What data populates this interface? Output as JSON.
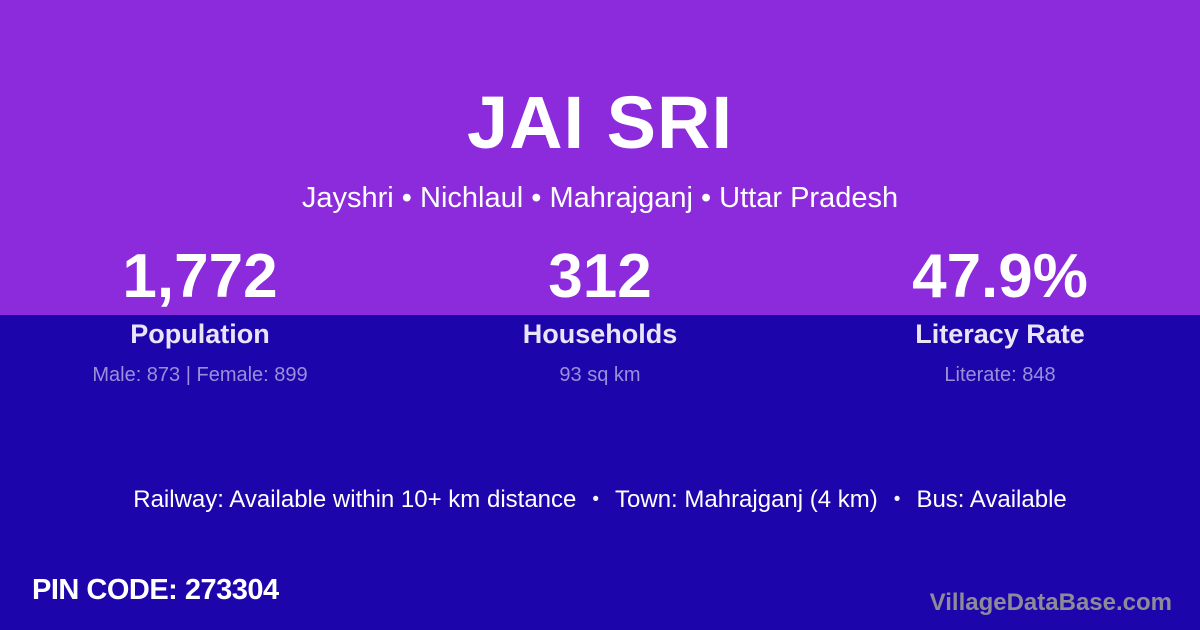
{
  "theme": {
    "top_background": "#8B2BDC",
    "bottom_background": "#1C06AB",
    "primary_text": "#FFFFFF",
    "label_text": "#E9E5F7",
    "detail_text": "#9990D9",
    "watermark_text": "#8D8B97"
  },
  "header": {
    "title": "JAI SRI",
    "subtitle": "Jayshri • Nichlaul • Mahrajganj • Uttar Pradesh"
  },
  "stats": [
    {
      "value": "1,772",
      "label": "Population",
      "detail": "Male: 873 | Female: 899"
    },
    {
      "value": "312",
      "label": "Households",
      "detail": "93 sq km"
    },
    {
      "value": "47.9%",
      "label": "Literacy Rate",
      "detail": "Literate: 848"
    }
  ],
  "transport": {
    "separator": "•",
    "railway": "Railway: Available within 10+ km distance",
    "town": "Town: Mahrajganj (4 km)",
    "bus": "Bus: Available"
  },
  "footer": {
    "pin_code": "PIN CODE: 273304",
    "watermark": "VillageDataBase.com"
  }
}
